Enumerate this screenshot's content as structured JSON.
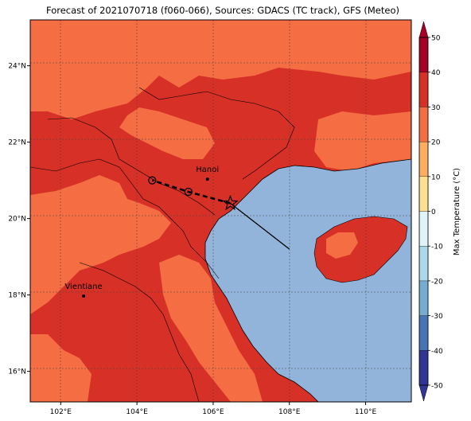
{
  "title": "Forecast of 2021070718 (f060-066), Sources: GDACS (TC track), GFS (Meteo)",
  "map": {
    "lon_range": [
      101.2,
      111.2
    ],
    "lat_range": [
      15.2,
      25.2
    ],
    "x_ticks": [
      {
        "value": 102,
        "label": "102°E"
      },
      {
        "value": 104,
        "label": "104°E"
      },
      {
        "value": 106,
        "label": "106°E"
      },
      {
        "value": 108,
        "label": "108°E"
      },
      {
        "value": 110,
        "label": "110°E"
      }
    ],
    "y_ticks": [
      {
        "value": 16,
        "label": "16°N"
      },
      {
        "value": 18,
        "label": "18°N"
      },
      {
        "value": 20,
        "label": "20°N"
      },
      {
        "value": 22,
        "label": "22°N"
      },
      {
        "value": 24,
        "label": "24°N"
      }
    ],
    "grid": true,
    "cities": [
      {
        "name": "Hanoi",
        "lon": 105.85,
        "lat": 21.03
      },
      {
        "name": "Vientiane",
        "lon": 102.6,
        "lat": 17.97
      }
    ],
    "track_past": [
      [
        108.0,
        19.2
      ],
      [
        106.45,
        20.4
      ]
    ],
    "track_forecast": [
      [
        106.45,
        20.4
      ],
      [
        105.35,
        20.7
      ],
      [
        104.4,
        21.0
      ]
    ],
    "track_circles": [
      [
        105.35,
        20.7
      ],
      [
        104.4,
        21.0
      ]
    ],
    "track_star": [
      106.45,
      20.4
    ]
  },
  "colorbar": {
    "label": "Max Temperature (°C)",
    "levels": [
      -50,
      -40,
      -30,
      -20,
      -10,
      0,
      10,
      20,
      30,
      40,
      50
    ],
    "tick_labels": [
      "-50",
      "-40",
      "-30",
      "-20",
      "-10",
      "0",
      "10",
      "20",
      "30",
      "40",
      "50"
    ],
    "colors": [
      "#313695",
      "#4575b4",
      "#74add1",
      "#abd9e9",
      "#e0f3f8",
      "#ffffbf",
      "#fee090",
      "#fdae61",
      "#f46d43",
      "#d73027",
      "#a50026"
    ],
    "extend": "both"
  },
  "fill_colors": {
    "land_30_40": "#d73027",
    "land_20_30": "#f46d43",
    "sea": "#92b4da"
  }
}
